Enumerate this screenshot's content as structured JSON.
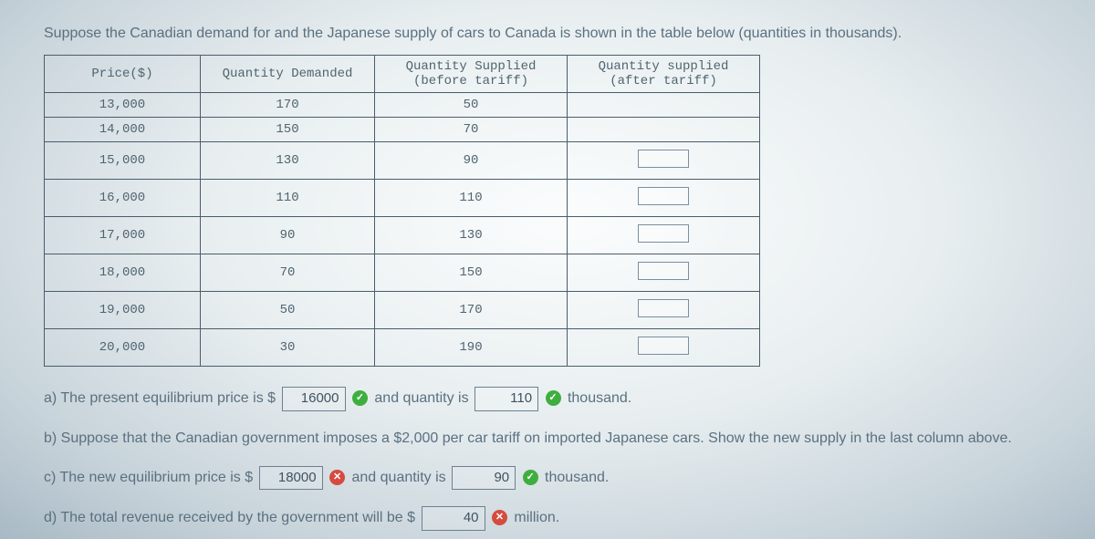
{
  "intro": "Suppose the Canadian demand for and the Japanese supply of cars to Canada is shown in the table below (quantities in thousands).",
  "table": {
    "headers": {
      "price": "Price($)",
      "qd": "Quantity Demanded",
      "qsb_line1": "Quantity Supplied",
      "qsb_line2": "(before tariff)",
      "qsa_line1": "Quantity supplied",
      "qsa_line2": "(after tariff)"
    },
    "rows": [
      {
        "price": "13,000",
        "qd": "170",
        "qsb": "50",
        "blank": false,
        "short": true
      },
      {
        "price": "14,000",
        "qd": "150",
        "qsb": "70",
        "blank": false,
        "short": true
      },
      {
        "price": "15,000",
        "qd": "130",
        "qsb": "90",
        "blank": true,
        "short": false
      },
      {
        "price": "16,000",
        "qd": "110",
        "qsb": "110",
        "blank": true,
        "short": false
      },
      {
        "price": "17,000",
        "qd": "90",
        "qsb": "130",
        "blank": true,
        "short": false
      },
      {
        "price": "18,000",
        "qd": "70",
        "qsb": "150",
        "blank": true,
        "short": false
      },
      {
        "price": "19,000",
        "qd": "50",
        "qsb": "170",
        "blank": true,
        "short": false
      },
      {
        "price": "20,000",
        "qd": "30",
        "qsb": "190",
        "blank": true,
        "short": false
      }
    ]
  },
  "qa": {
    "a_pre": "a) The present equilibrium price is $",
    "a_val1": "16000",
    "a_mid": "and quantity is",
    "a_val2": "110",
    "a_post": "thousand.",
    "a_icon1": "ok",
    "a_icon2": "ok",
    "b_text": "b) Suppose that the Canadian government imposes a $2,000 per car tariff on imported Japanese cars. Show the new supply in the last column above.",
    "c_pre": "c) The new equilibrium price is $",
    "c_val1": "18000",
    "c_mid": "and quantity is",
    "c_val2": "90",
    "c_post": "thousand.",
    "c_icon1": "no",
    "c_icon2": "ok",
    "d_pre": "d) The total revenue received by the government will be $",
    "d_val": "40",
    "d_post": "million.",
    "d_icon": "no"
  },
  "glyphs": {
    "check": "✓",
    "cross": "✕"
  }
}
